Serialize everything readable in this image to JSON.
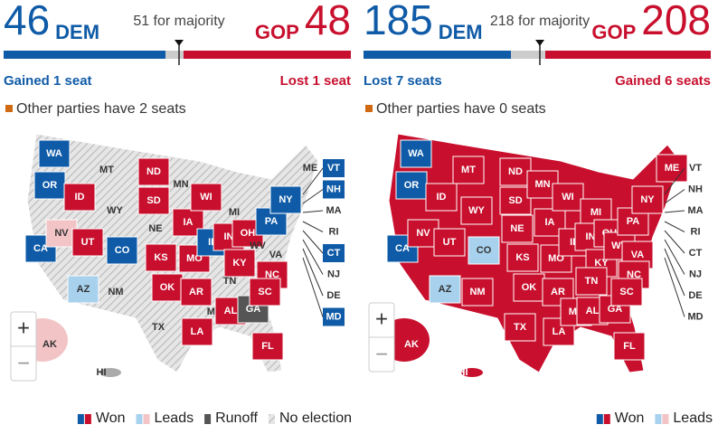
{
  "senate": {
    "dem_count": "46",
    "dem_label": "DEM",
    "majority": "51 for majority",
    "gop_label": "GOP",
    "gop_count": "48",
    "dem_change": "Gained 1 seat",
    "gop_change": "Lost 1 seat",
    "other": "Other parties have 2 seats",
    "states": [
      "WA",
      "OR",
      "CA",
      "ID",
      "NV",
      "UT",
      "AZ",
      "MT",
      "WY",
      "CO",
      "NM",
      "ND",
      "SD",
      "NE",
      "KS",
      "OK",
      "TX",
      "MN",
      "IA",
      "MO",
      "AR",
      "LA",
      "WI",
      "IL",
      "MS",
      "MI",
      "IN",
      "KY",
      "TN",
      "AL",
      "GA",
      "FL",
      "OH",
      "WV",
      "VA",
      "NC",
      "SC",
      "PA",
      "NY",
      "ME",
      "AK",
      "HI"
    ],
    "ne_states": [
      "VT",
      "NH",
      "MA",
      "RI",
      "CT",
      "NJ",
      "DE",
      "MD"
    ],
    "legend": [
      "Won",
      "Leads",
      "Runoff",
      "No election"
    ]
  },
  "house": {
    "dem_count": "185",
    "dem_label": "DEM",
    "majority": "218 for majority",
    "gop_label": "GOP",
    "gop_count": "208",
    "dem_change": "Lost 7 seats",
    "gop_change": "Gained 6 seats",
    "other": "Other parties have 0 seats",
    "states": [
      "WA",
      "OR",
      "CA",
      "ID",
      "NV",
      "UT",
      "AZ",
      "MT",
      "WY",
      "CO",
      "NM",
      "ND",
      "SD",
      "NE",
      "KS",
      "OK",
      "TX",
      "MN",
      "IA",
      "MO",
      "AR",
      "LA",
      "WI",
      "IL",
      "MS",
      "MI",
      "IN",
      "KY",
      "TN",
      "AL",
      "GA",
      "FL",
      "OH",
      "WV",
      "VA",
      "NC",
      "SC",
      "PA",
      "NY",
      "ME",
      "AK",
      "HI"
    ],
    "ne_states": [
      "VT",
      "NH",
      "MA",
      "RI",
      "CT",
      "NJ",
      "DE",
      "MD"
    ],
    "legend": [
      "Won",
      "Leads"
    ]
  },
  "zoom": {
    "in": "+",
    "out": "−"
  }
}
